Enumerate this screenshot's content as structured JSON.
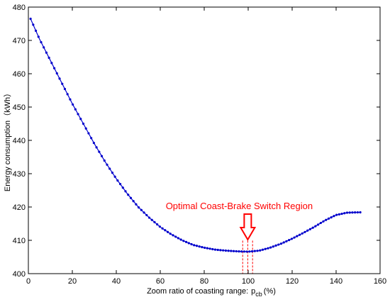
{
  "chart_data": {
    "type": "line",
    "xlabel_main": "Zoom ratio of coasting range:",
    "xlabel_symbol": "p",
    "xlabel_sub": "cb",
    "xlabel_unit": "(%)",
    "ylabel": "Energy consumption（kWh）",
    "xlim": [
      0,
      160
    ],
    "ylim": [
      400,
      480
    ],
    "x_ticks": [
      0,
      20,
      40,
      60,
      80,
      100,
      120,
      140,
      160
    ],
    "y_ticks": [
      400,
      410,
      420,
      430,
      440,
      450,
      460,
      470,
      480
    ],
    "grid": false,
    "series": [
      {
        "color": "#0000cc",
        "marker": "dot",
        "x": [
          1,
          5,
          10,
          15,
          20,
          25,
          30,
          35,
          40,
          45,
          50,
          55,
          60,
          65,
          70,
          75,
          80,
          85,
          90,
          95,
          100,
          105,
          110,
          115,
          120,
          125,
          130,
          135,
          140,
          145,
          150,
          151
        ],
        "y": [
          476.5,
          470.5,
          464.0,
          457.5,
          451.0,
          445.0,
          439.0,
          433.5,
          428.5,
          424.0,
          420.0,
          416.8,
          414.0,
          411.8,
          410.0,
          408.6,
          407.8,
          407.2,
          406.9,
          406.7,
          406.6,
          406.9,
          407.8,
          409.0,
          410.5,
          412.2,
          414.0,
          416.0,
          417.6,
          418.3,
          418.4,
          418.4
        ]
      }
    ],
    "annotation": {
      "text": "Optimal Coast-Brake Switch Region",
      "color": "#ff0000",
      "region_x": [
        97.5,
        102
      ],
      "center_x": 99.8
    }
  }
}
